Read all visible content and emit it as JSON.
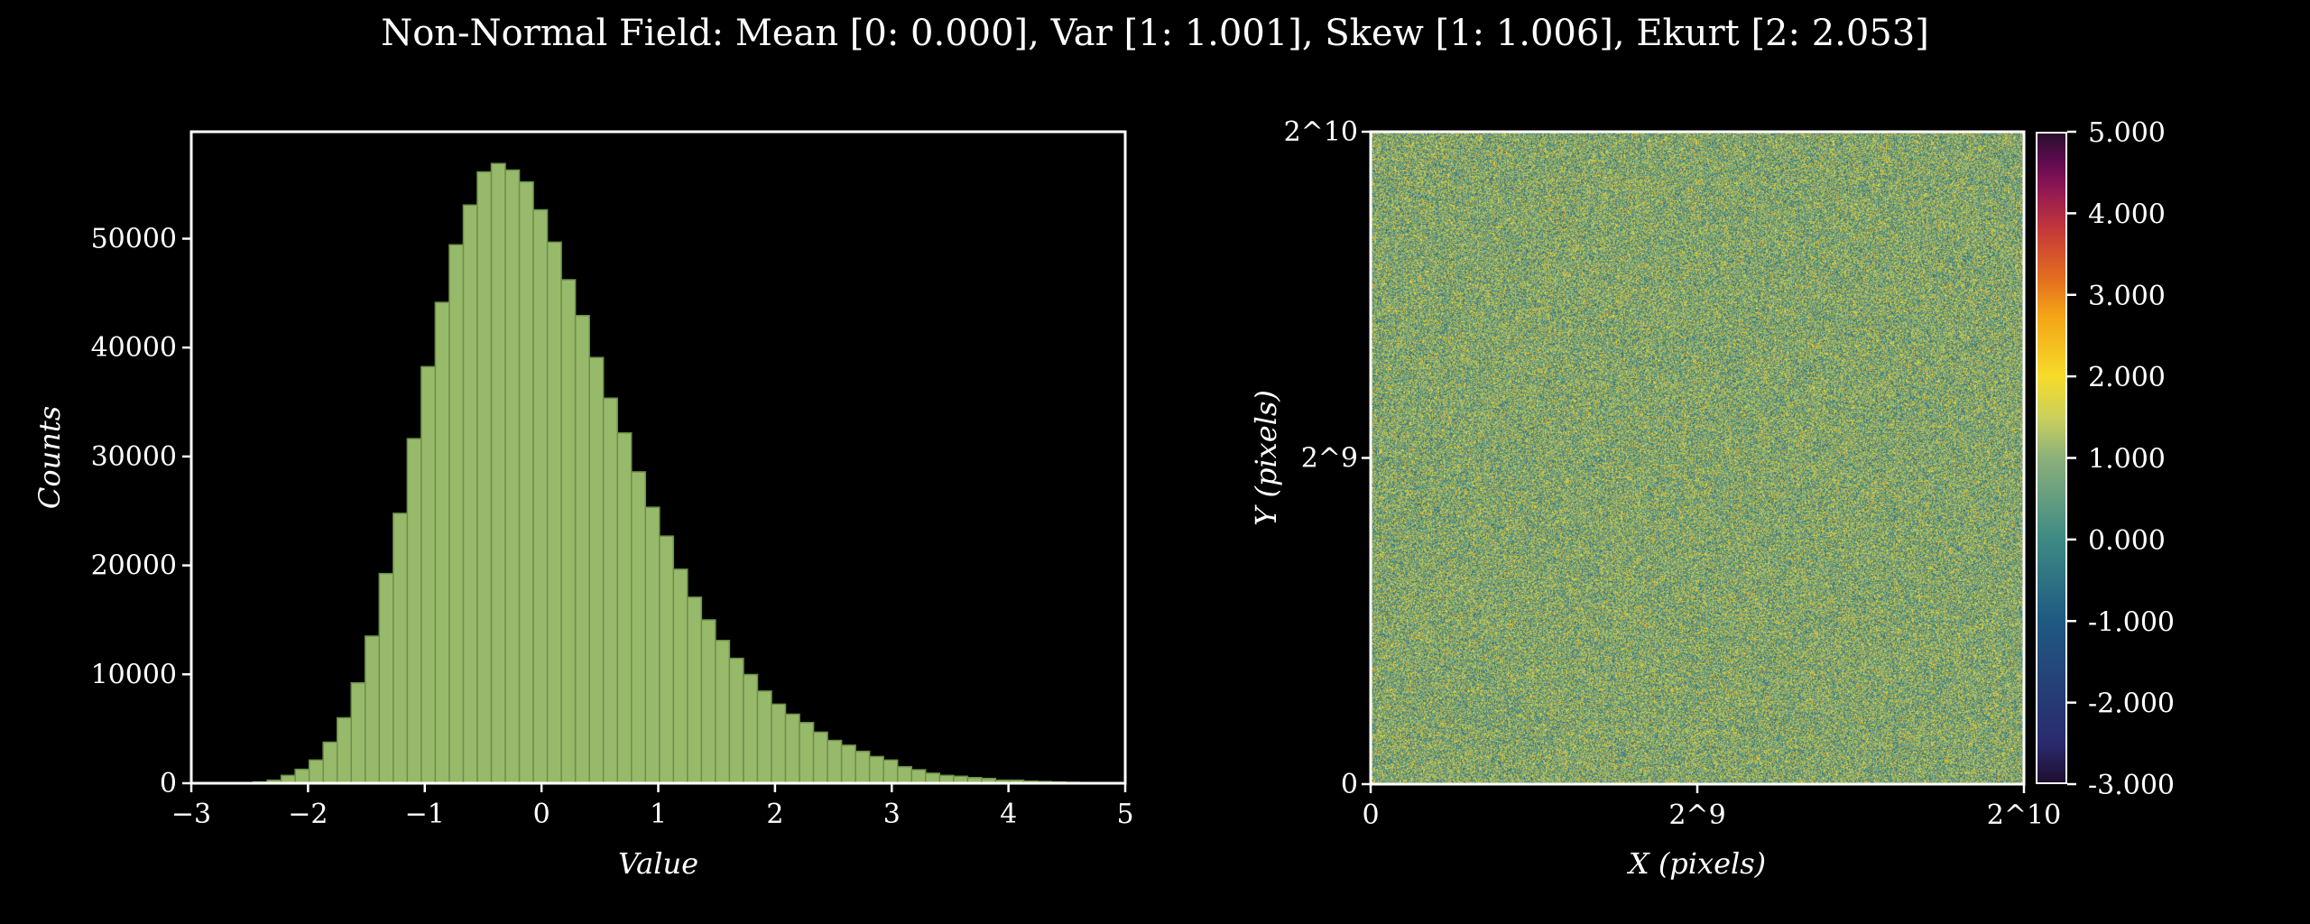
{
  "title": "Non-Normal Field: Mean [0: 0.000], Var [1: 1.001], Skew [1: 1.006], Ekurt [2: 2.053]",
  "chart_data": [
    {
      "type": "bar",
      "subtype": "histogram",
      "xlabel": "Value",
      "ylabel": "Counts",
      "xlim": [
        -3,
        5
      ],
      "ylim": [
        0,
        59000
      ],
      "x_ticks": [
        "−3",
        "−2",
        "−1",
        "0",
        "1",
        "2",
        "3",
        "4",
        "5"
      ],
      "y_ticks": [
        "0",
        "10000",
        "20000",
        "30000",
        "40000",
        "50000"
      ],
      "bin_start": -2.47,
      "bin_width": 0.12,
      "bar_color": "#97b96a",
      "values": [
        120,
        280,
        720,
        1280,
        2130,
        3770,
        6010,
        9220,
        13510,
        19250,
        24780,
        31640,
        38250,
        44150,
        49440,
        53090,
        56130,
        56900,
        56300,
        55210,
        52650,
        49680,
        46230,
        42940,
        39090,
        35360,
        32160,
        28590,
        25340,
        22690,
        19650,
        17080,
        15000,
        13110,
        11470,
        9980,
        8460,
        7260,
        6340,
        5570,
        4690,
        3930,
        3490,
        2930,
        2450,
        2130,
        1520,
        1240,
        920,
        720,
        640,
        520,
        440,
        280,
        280,
        200,
        160,
        120,
        80
      ]
    },
    {
      "type": "heatmap",
      "xlabel": "X (pixels)",
      "ylabel": "Y (pixels)",
      "x_ticks": [
        "0",
        "2^9",
        "2^10"
      ],
      "y_ticks": [
        "0",
        "2^9",
        "2^10"
      ],
      "colorbar": {
        "ticks": [
          "5.000",
          "4.000",
          "3.000",
          "2.000",
          "1.000",
          "0.000",
          "-1.000",
          "-2.000",
          "-3.000"
        ],
        "range": [
          -3,
          5
        ]
      }
    }
  ]
}
